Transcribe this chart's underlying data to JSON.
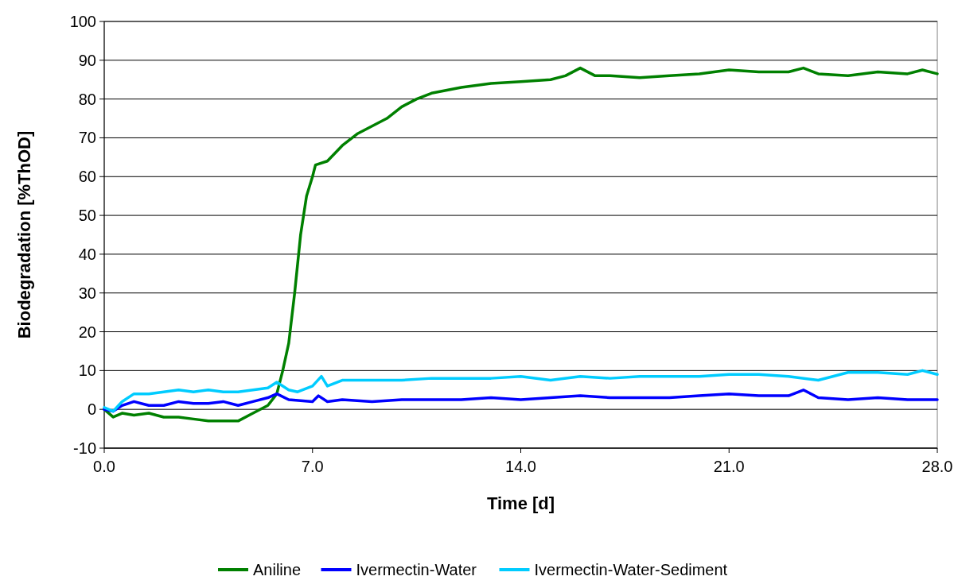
{
  "chart_data": {
    "type": "line",
    "xlabel": "Time [d]",
    "ylabel": "Biodegradation [%ThOD]",
    "xlim": [
      0,
      28
    ],
    "xticks": [
      {
        "value": 0,
        "label": "0.0"
      },
      {
        "value": 7,
        "label": "7.0"
      },
      {
        "value": 14,
        "label": "14.0"
      },
      {
        "value": 21,
        "label": "21.0"
      },
      {
        "value": 28,
        "label": "28.0"
      }
    ],
    "ylim": [
      -10,
      100
    ],
    "yticks": [
      -10,
      0,
      10,
      20,
      30,
      40,
      50,
      60,
      70,
      80,
      90,
      100
    ],
    "grid": "y",
    "legend": "bottom",
    "marker": "none",
    "line_style": "solid",
    "series": [
      {
        "name": "Aniline",
        "color": "#008000",
        "x": [
          0,
          0.3,
          0.6,
          1,
          1.5,
          2,
          2.5,
          3,
          3.5,
          4,
          4.5,
          5,
          5.5,
          5.8,
          6,
          6.2,
          6.4,
          6.6,
          6.8,
          7,
          7.1,
          7.5,
          8,
          8.5,
          9,
          9.5,
          10,
          10.5,
          11,
          12,
          13,
          14,
          15,
          15.5,
          16,
          16.5,
          17,
          18,
          19,
          20,
          21,
          22,
          23,
          23.5,
          24,
          25,
          26,
          27,
          27.5,
          28
        ],
        "values": [
          0,
          -2,
          -1,
          -1.5,
          -1,
          -2,
          -2,
          -2.5,
          -3,
          -3,
          -3,
          -1,
          1,
          4,
          10,
          17,
          30,
          45,
          55,
          60,
          63,
          64,
          68,
          71,
          73,
          75,
          78,
          80,
          81.5,
          83,
          84,
          84.5,
          85,
          86,
          88,
          86,
          86,
          85.5,
          86,
          86.5,
          87.5,
          87,
          87,
          88,
          86.5,
          86,
          87,
          86.5,
          87.5,
          86.5
        ]
      },
      {
        "name": "Ivermectin-Water",
        "color": "#0000ff",
        "x": [
          0,
          0.3,
          0.6,
          1,
          1.5,
          2,
          2.5,
          3,
          3.5,
          4,
          4.5,
          5,
          5.5,
          5.8,
          6.2,
          7,
          7.2,
          7.5,
          8,
          9,
          10,
          11,
          12,
          13,
          14,
          15,
          16,
          17,
          18,
          19,
          20,
          21,
          22,
          23,
          23.5,
          24,
          25,
          26,
          27,
          28
        ],
        "values": [
          0,
          -0.5,
          1,
          2,
          1,
          1,
          2,
          1.5,
          1.5,
          2,
          1,
          2,
          3,
          4,
          2.5,
          2,
          3.5,
          2,
          2.5,
          2,
          2.5,
          2.5,
          2.5,
          3,
          2.5,
          3,
          3.5,
          3,
          3,
          3,
          3.5,
          4,
          3.5,
          3.5,
          5,
          3,
          2.5,
          3,
          2.5,
          2.5
        ]
      },
      {
        "name": "Ivermectin-Water-Sediment",
        "color": "#00ccff",
        "x": [
          0,
          0.3,
          0.6,
          1,
          1.5,
          2,
          2.5,
          3,
          3.5,
          4,
          4.5,
          5,
          5.5,
          5.8,
          6.2,
          6.5,
          7,
          7.3,
          7.5,
          8,
          9,
          10,
          11,
          12,
          13,
          14,
          15,
          16,
          17,
          18,
          19,
          20,
          21,
          21.5,
          22,
          23,
          24,
          25,
          26,
          27,
          27.5,
          28
        ],
        "values": [
          0.5,
          -0.5,
          2,
          4,
          4,
          4.5,
          5,
          4.5,
          5,
          4.5,
          4.5,
          5,
          5.5,
          7,
          5,
          4.5,
          6,
          8.5,
          6,
          7.5,
          7.5,
          7.5,
          8,
          8,
          8,
          8.5,
          7.5,
          8.5,
          8,
          8.5,
          8.5,
          8.5,
          9,
          9,
          9,
          8.5,
          7.5,
          9.5,
          9.5,
          9,
          10,
          9
        ]
      }
    ]
  }
}
